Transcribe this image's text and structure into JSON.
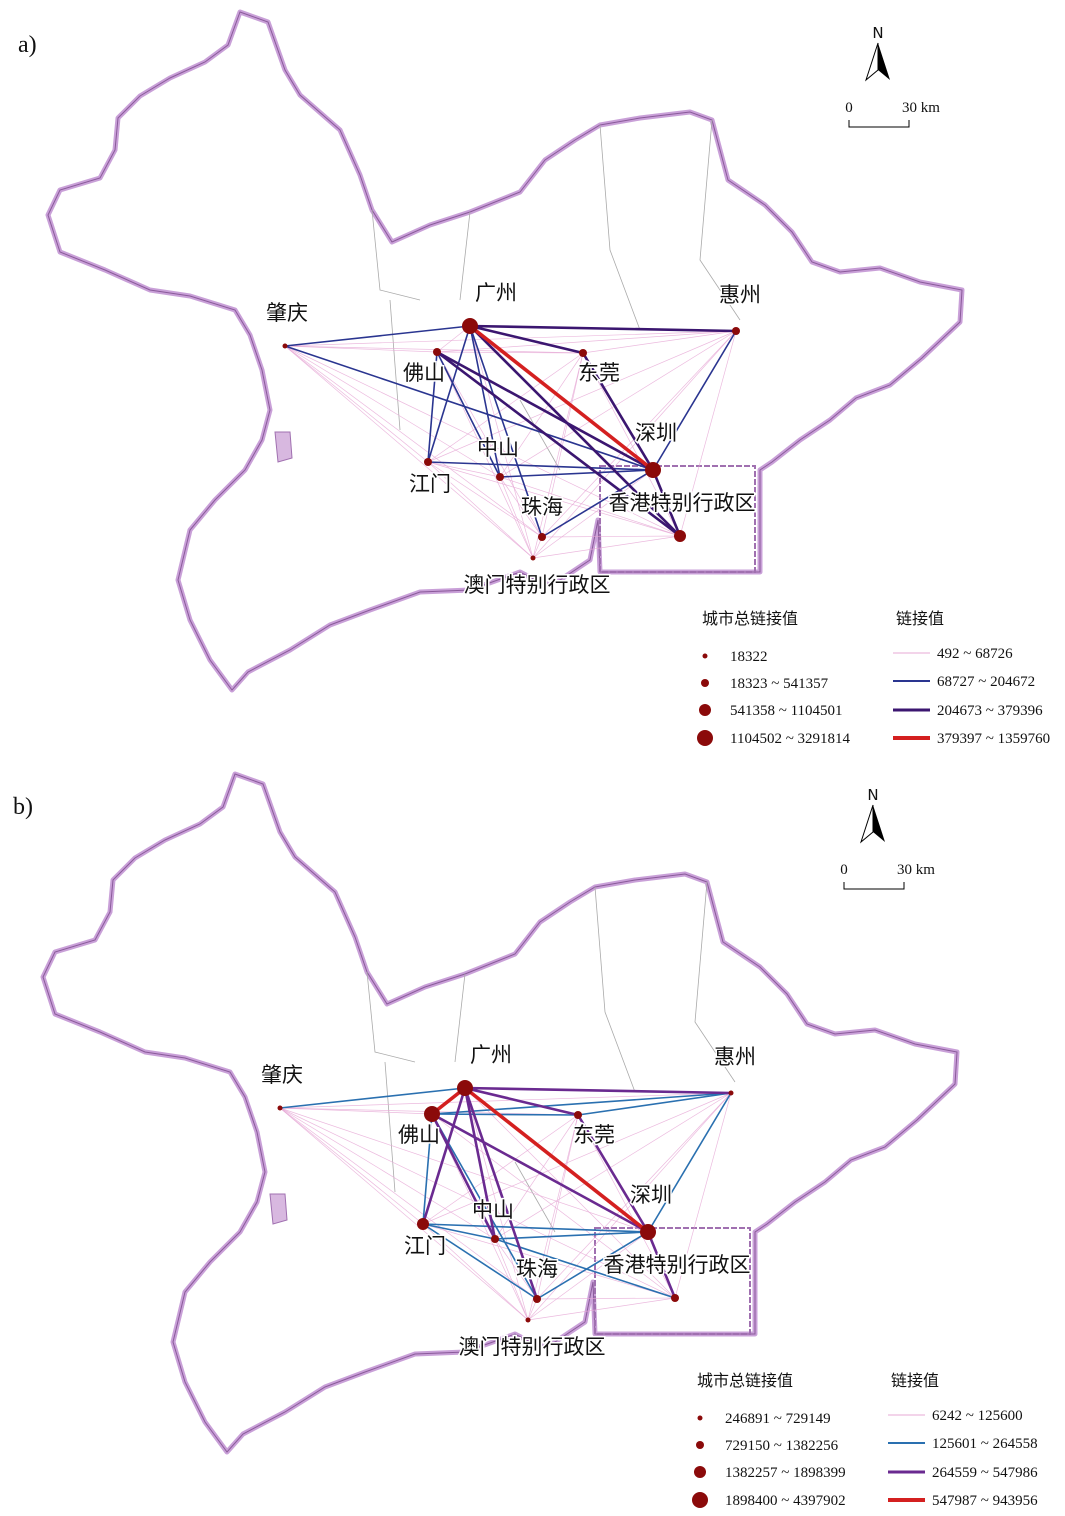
{
  "panels": [
    {
      "label": "a)",
      "north": "N",
      "scale": {
        "start": "0",
        "end": "30 km"
      },
      "cities": [
        "广州",
        "佛山",
        "东莞",
        "惠州",
        "肇庆",
        "江门",
        "中山",
        "珠海",
        "深圳",
        "香港特别行政区",
        "澳门特别行政区"
      ],
      "legend": {
        "nodes_title": "城市总链接值",
        "nodes": [
          "18322",
          "18323 ~ 541357",
          "541358 ~ 1104501",
          "1104502 ~ 3291814"
        ],
        "node_color": "#8b0a0a",
        "links_title": "链接值",
        "links": [
          {
            "label": "492 ~ 68726",
            "color": "#e7a9d6"
          },
          {
            "label": "68727 ~ 204672",
            "color": "#2a3590"
          },
          {
            "label": "204673 ~ 379396",
            "color": "#3b1670"
          },
          {
            "label": "379397 ~ 1359760",
            "color": "#d42020"
          }
        ]
      }
    },
    {
      "label": "b)",
      "north": "N",
      "scale": {
        "start": "0",
        "end": "30 km"
      },
      "cities": [
        "广州",
        "佛山",
        "东莞",
        "惠州",
        "肇庆",
        "江门",
        "中山",
        "珠海",
        "深圳",
        "香港特别行政区",
        "澳门特别行政区"
      ],
      "legend": {
        "nodes_title": "城市总链接值",
        "nodes": [
          "246891 ~ 729149",
          "729150 ~ 1382256",
          "1382257 ~ 1898399",
          "1898400 ~ 4397902"
        ],
        "node_color": "#8b0a0a",
        "links_title": "链接值",
        "links": [
          {
            "label": "6242 ~ 125600",
            "color": "#e7a9d6"
          },
          {
            "label": "125601 ~ 264558",
            "color": "#2a70b0"
          },
          {
            "label": "264559 ~ 547986",
            "color": "#6a2a90"
          },
          {
            "label": "547987 ~ 943956",
            "color": "#d42020"
          }
        ]
      }
    }
  ]
}
